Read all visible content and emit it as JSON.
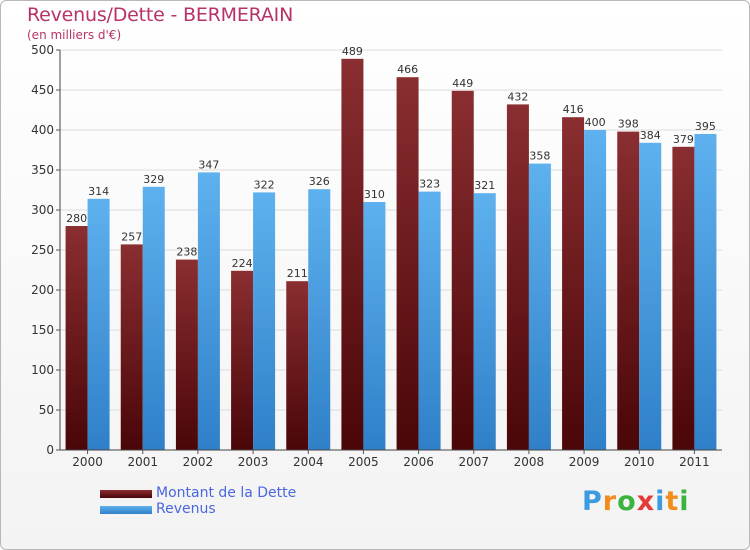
{
  "title": "Revenus/Dette - BERMERAIN",
  "subtitle": "(en milliers d'€)",
  "logo": {
    "letters": [
      "P",
      "r",
      "o",
      "x",
      "i",
      "t",
      "i"
    ],
    "colors": [
      "#3b9be0",
      "#f28c1d",
      "#3cb33c",
      "#e63a3a",
      "#3b9be0",
      "#f28c1d",
      "#3cb33c"
    ]
  },
  "colors": {
    "dette": "#701b1e",
    "revenus": "#4fa3e6"
  },
  "chart_data": {
    "type": "bar",
    "categories": [
      "2000",
      "2001",
      "2002",
      "2003",
      "2004",
      "2005",
      "2006",
      "2007",
      "2008",
      "2009",
      "2010",
      "2011"
    ],
    "series": [
      {
        "name": "Montant de la Dette",
        "values": [
          280,
          257,
          238,
          224,
          211,
          489,
          466,
          449,
          432,
          416,
          398,
          379
        ]
      },
      {
        "name": "Revenus",
        "values": [
          314,
          329,
          347,
          322,
          326,
          310,
          323,
          321,
          358,
          400,
          384,
          395
        ]
      }
    ],
    "yticks": [
      0,
      50,
      100,
      150,
      200,
      250,
      300,
      350,
      400,
      450,
      500
    ],
    "ylim": [
      0,
      500
    ],
    "grid": true,
    "legend_position": "bottom-left"
  }
}
